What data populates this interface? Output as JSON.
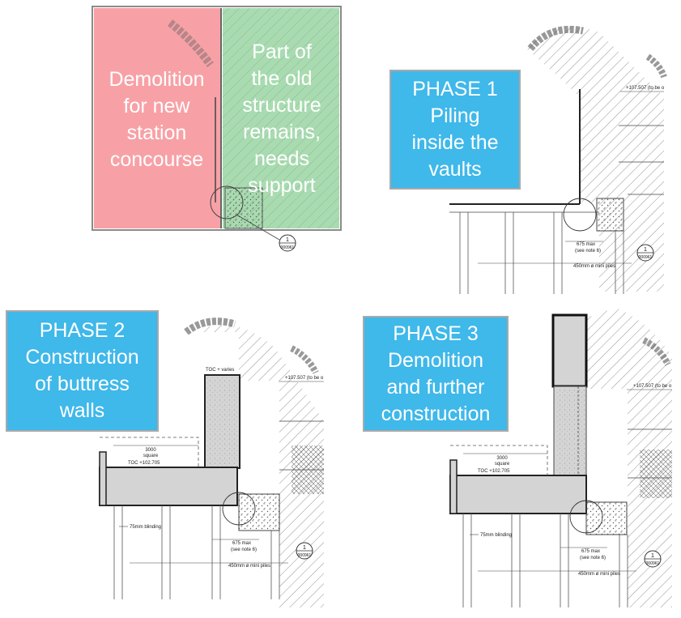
{
  "intro": {
    "left_label": [
      "Demolition",
      "for new",
      "station",
      "concourse"
    ],
    "right_label": [
      "Part of",
      "the old",
      "structure",
      "remains,",
      "needs",
      "support"
    ],
    "ref_num": "1",
    "ref_code": "000961"
  },
  "phase1": {
    "title_lines": [
      "PHASE 1",
      "Piling",
      "inside the",
      "vaults"
    ],
    "level": "+107.507 (to be o",
    "dim_max": "675 max",
    "dim_note": "(see note 6)",
    "piles": "450mm ø mini piles",
    "ref_num": "1",
    "ref_code": "000961"
  },
  "phase2": {
    "title_lines": [
      "PHASE 2",
      "Construction",
      "of buttress",
      "walls"
    ],
    "toc_top": "TOC + varies",
    "level": "+107.507 (to be o",
    "square_dim": "3000",
    "square_note": "square",
    "toc_slab": "TOC +102.705",
    "blinding": "75mm blinding",
    "dim_max": "675 max",
    "dim_note": "(see note 6)",
    "piles": "450mm ø mini piles",
    "ref_num": "1",
    "ref_code": "000961"
  },
  "phase3": {
    "title_lines": [
      "PHASE 3",
      "Demolition",
      "and further",
      "construction"
    ],
    "level": "+107.507 (to be o",
    "square_dim": "3000",
    "square_note": "square",
    "toc_slab": "TOC +102.705",
    "blinding": "75mm blinding",
    "dim_max": "675 max",
    "dim_note": "(see note 6)",
    "piles": "450mm ø mini piles",
    "ref_num": "1",
    "ref_code": "000961"
  },
  "colors": {
    "phase_box": "#3fb8ea",
    "demolition": "#f7a1a6",
    "remains": "#a8dcb0",
    "slab": "#d4d4d4"
  }
}
